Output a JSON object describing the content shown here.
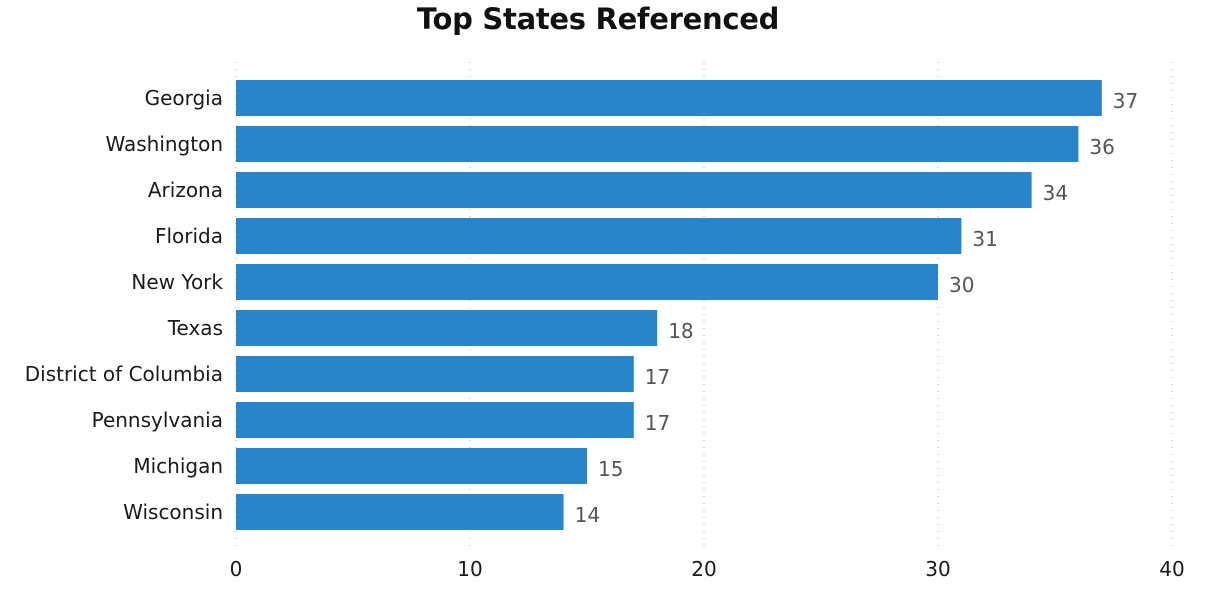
{
  "chart_data": {
    "type": "bar",
    "orientation": "horizontal",
    "title": "Top States Referenced",
    "xlabel": "",
    "ylabel": "",
    "categories": [
      "Georgia",
      "Washington",
      "Arizona",
      "Florida",
      "New York",
      "Texas",
      "District of Columbia",
      "Pennsylvania",
      "Michigan",
      "Wisconsin"
    ],
    "values": [
      37,
      36,
      34,
      31,
      30,
      18,
      17,
      17,
      15,
      14
    ],
    "xlim": [
      0,
      40
    ],
    "x_ticks": [
      0,
      10,
      20,
      30,
      40
    ],
    "grid": "vertical dotted",
    "data_labels": true,
    "bar_color": "#2985c9"
  }
}
